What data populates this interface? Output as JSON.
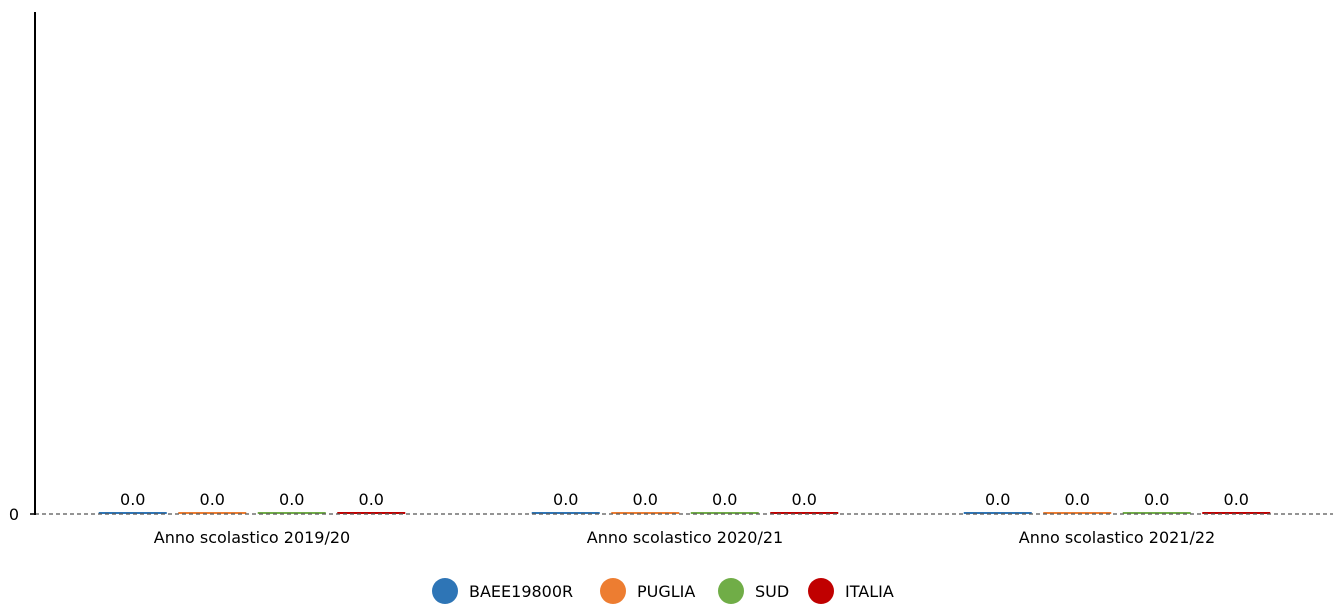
{
  "chart_data": {
    "type": "bar",
    "categories": [
      "Anno scolastico 2019/20",
      "Anno scolastico 2020/21",
      "Anno scolastico 2021/22"
    ],
    "series": [
      {
        "name": "BAEE19800R",
        "color": "#2e75b6",
        "values": [
          0.0,
          0.0,
          0.0
        ],
        "labels": [
          "0.0",
          "0.0",
          "0.0"
        ]
      },
      {
        "name": "PUGLIA",
        "color": "#ed7d31",
        "values": [
          0.0,
          0.0,
          0.0
        ],
        "labels": [
          "0.0",
          "0.0",
          "0.0"
        ]
      },
      {
        "name": "SUD",
        "color": "#70ad47",
        "values": [
          0.0,
          0.0,
          0.0
        ],
        "labels": [
          "0.0",
          "0.0",
          "0.0"
        ]
      },
      {
        "name": "ITALIA",
        "color": "#c00000",
        "values": [
          0.0,
          0.0,
          0.0
        ],
        "labels": [
          "0.0",
          "0.0",
          "0.0"
        ]
      }
    ],
    "y_ticks": [
      "0"
    ],
    "ylim": [
      0,
      1
    ],
    "grid": false,
    "legend_position": "bottom",
    "title": "",
    "xlabel": "",
    "ylabel": ""
  }
}
